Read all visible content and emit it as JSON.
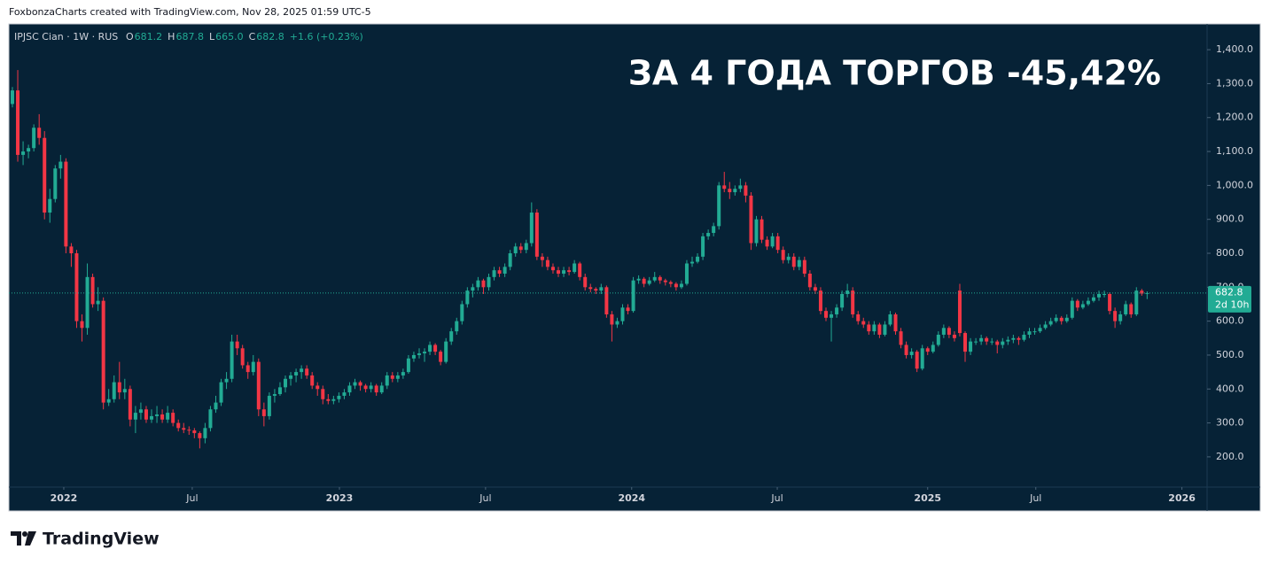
{
  "header": "FoxbonzaCharts created with TradingView.com, Nov 28, 2025 01:59 UTC-5",
  "footer": "TradingView",
  "chart_data": {
    "type": "candlestick",
    "title": "ЗА 4 ГОДА ТОРГОВ -45,42%",
    "symbol": "IPJSC Cian · 1W · RUS",
    "legend": [
      {
        "label": "O",
        "value": "681.2"
      },
      {
        "label": "H",
        "value": "687.8"
      },
      {
        "label": "L",
        "value": "665.0"
      },
      {
        "label": "C",
        "value": "682.8"
      }
    ],
    "change": "+1.6 (+0.23%)",
    "up_color": "#22ab94",
    "down_color": "#f23645",
    "grid": false,
    "last_price": {
      "value": 682.8,
      "label": "682.8"
    },
    "countdown": "2d 10h",
    "ylim": [
      111,
      1476
    ],
    "yticks": [
      {
        "value": 200,
        "label": "200.0"
      },
      {
        "value": 300,
        "label": "300.0"
      },
      {
        "value": 400,
        "label": "400.0"
      },
      {
        "value": 500,
        "label": "500.0"
      },
      {
        "value": 600,
        "label": "600.0"
      },
      {
        "value": 700,
        "label": "700.0"
      },
      {
        "value": 800,
        "label": "800.0"
      },
      {
        "value": 900,
        "label": "900.0"
      },
      {
        "value": 1000,
        "label": "1,000.0"
      },
      {
        "value": 1100,
        "label": "1,100.0"
      },
      {
        "value": 1200,
        "label": "1,200.0"
      },
      {
        "value": 1300,
        "label": "1,300.0"
      },
      {
        "value": 1400,
        "label": "1,400.0"
      }
    ],
    "xlim": [
      -0.66,
      223.2
    ],
    "xticks": [
      {
        "value": 9.6,
        "label": "2022"
      },
      {
        "value": 33.6,
        "label": "Jul"
      },
      {
        "value": 61.1,
        "label": "2023"
      },
      {
        "value": 88.4,
        "label": "Jul"
      },
      {
        "value": 115.7,
        "label": "2024"
      },
      {
        "value": 142.9,
        "label": "Jul"
      },
      {
        "value": 171,
        "label": "2025"
      },
      {
        "value": 191.2,
        "label": "Jul"
      },
      {
        "value": 218.5,
        "label": "2026"
      }
    ],
    "ohlc": [
      [
        1240,
        1290,
        1230,
        1280
      ],
      [
        1280,
        1340,
        1070,
        1090
      ],
      [
        1090,
        1130,
        1060,
        1100
      ],
      [
        1100,
        1120,
        1080,
        1110
      ],
      [
        1110,
        1180,
        1100,
        1170
      ],
      [
        1170,
        1210,
        1120,
        1140
      ],
      [
        1140,
        1160,
        900,
        920
      ],
      [
        920,
        990,
        890,
        960
      ],
      [
        960,
        1060,
        950,
        1050
      ],
      [
        1050,
        1090,
        1020,
        1070
      ],
      [
        1070,
        1080,
        800,
        820
      ],
      [
        820,
        830,
        760,
        800
      ],
      [
        800,
        810,
        580,
        600
      ],
      [
        600,
        620,
        540,
        580
      ],
      [
        580,
        770,
        560,
        730
      ],
      [
        730,
        740,
        640,
        650
      ],
      [
        650,
        700,
        630,
        660
      ],
      [
        660,
        670,
        340,
        360
      ],
      [
        360,
        400,
        350,
        370
      ],
      [
        370,
        440,
        360,
        420
      ],
      [
        420,
        480,
        370,
        390
      ],
      [
        390,
        430,
        370,
        400
      ],
      [
        400,
        410,
        290,
        310
      ],
      [
        310,
        350,
        270,
        330
      ],
      [
        330,
        360,
        310,
        340
      ],
      [
        340,
        350,
        300,
        310
      ],
      [
        310,
        340,
        300,
        320
      ],
      [
        320,
        350,
        300,
        325
      ],
      [
        325,
        340,
        300,
        310
      ],
      [
        310,
        350,
        300,
        330
      ],
      [
        330,
        340,
        290,
        300
      ],
      [
        300,
        310,
        275,
        285
      ],
      [
        285,
        300,
        270,
        280
      ],
      [
        280,
        290,
        265,
        278
      ],
      [
        278,
        285,
        255,
        270
      ],
      [
        270,
        275,
        225,
        255
      ],
      [
        255,
        300,
        240,
        285
      ],
      [
        285,
        350,
        275,
        340
      ],
      [
        340,
        380,
        330,
        360
      ],
      [
        360,
        430,
        350,
        420
      ],
      [
        420,
        450,
        400,
        430
      ],
      [
        430,
        560,
        420,
        540
      ],
      [
        540,
        560,
        500,
        520
      ],
      [
        520,
        530,
        460,
        470
      ],
      [
        470,
        480,
        430,
        450
      ],
      [
        450,
        500,
        440,
        480
      ],
      [
        480,
        490,
        320,
        340
      ],
      [
        340,
        360,
        290,
        320
      ],
      [
        320,
        390,
        310,
        380
      ],
      [
        380,
        400,
        360,
        385
      ],
      [
        385,
        420,
        380,
        405
      ],
      [
        405,
        440,
        390,
        430
      ],
      [
        430,
        450,
        410,
        440
      ],
      [
        440,
        460,
        420,
        450
      ],
      [
        450,
        470,
        430,
        460
      ],
      [
        460,
        470,
        430,
        440
      ],
      [
        440,
        450,
        400,
        410
      ],
      [
        410,
        420,
        380,
        400
      ],
      [
        400,
        410,
        355,
        370
      ],
      [
        370,
        385,
        355,
        365
      ],
      [
        365,
        380,
        355,
        370
      ],
      [
        370,
        390,
        360,
        380
      ],
      [
        380,
        400,
        370,
        390
      ],
      [
        390,
        420,
        380,
        410
      ],
      [
        410,
        430,
        400,
        420
      ],
      [
        420,
        425,
        395,
        410
      ],
      [
        410,
        415,
        390,
        400
      ],
      [
        400,
        420,
        390,
        410
      ],
      [
        410,
        415,
        380,
        390
      ],
      [
        390,
        420,
        385,
        410
      ],
      [
        410,
        450,
        400,
        440
      ],
      [
        440,
        450,
        420,
        430
      ],
      [
        430,
        450,
        420,
        440
      ],
      [
        440,
        460,
        430,
        450
      ],
      [
        450,
        500,
        445,
        490
      ],
      [
        490,
        510,
        480,
        500
      ],
      [
        500,
        520,
        490,
        505
      ],
      [
        505,
        520,
        480,
        510
      ],
      [
        510,
        540,
        500,
        530
      ],
      [
        530,
        535,
        500,
        510
      ],
      [
        510,
        515,
        470,
        480
      ],
      [
        480,
        550,
        475,
        540
      ],
      [
        540,
        580,
        530,
        570
      ],
      [
        570,
        610,
        560,
        600
      ],
      [
        600,
        660,
        590,
        650
      ],
      [
        650,
        700,
        640,
        690
      ],
      [
        690,
        710,
        670,
        700
      ],
      [
        700,
        730,
        690,
        720
      ],
      [
        720,
        725,
        680,
        700
      ],
      [
        700,
        740,
        690,
        730
      ],
      [
        730,
        760,
        720,
        750
      ],
      [
        750,
        760,
        730,
        740
      ],
      [
        740,
        770,
        730,
        760
      ],
      [
        760,
        810,
        750,
        800
      ],
      [
        800,
        830,
        790,
        820
      ],
      [
        820,
        830,
        800,
        810
      ],
      [
        810,
        840,
        800,
        830
      ],
      [
        830,
        950,
        820,
        920
      ],
      [
        920,
        930,
        780,
        790
      ],
      [
        790,
        800,
        760,
        780
      ],
      [
        780,
        790,
        750,
        760
      ],
      [
        760,
        770,
        740,
        750
      ],
      [
        750,
        760,
        730,
        740
      ],
      [
        740,
        760,
        730,
        750
      ],
      [
        750,
        760,
        735,
        745
      ],
      [
        745,
        780,
        740,
        770
      ],
      [
        770,
        775,
        720,
        730
      ],
      [
        730,
        740,
        690,
        700
      ],
      [
        700,
        710,
        685,
        695
      ],
      [
        695,
        700,
        680,
        690
      ],
      [
        690,
        710,
        680,
        700
      ],
      [
        700,
        705,
        610,
        620
      ],
      [
        620,
        630,
        540,
        590
      ],
      [
        590,
        610,
        580,
        600
      ],
      [
        600,
        650,
        590,
        640
      ],
      [
        640,
        650,
        620,
        630
      ],
      [
        630,
        730,
        625,
        720
      ],
      [
        720,
        735,
        710,
        725
      ],
      [
        725,
        730,
        700,
        710
      ],
      [
        710,
        730,
        705,
        720
      ],
      [
        720,
        745,
        715,
        730
      ],
      [
        730,
        735,
        710,
        720
      ],
      [
        720,
        725,
        705,
        715
      ],
      [
        715,
        720,
        700,
        710
      ],
      [
        710,
        715,
        690,
        700
      ],
      [
        700,
        720,
        695,
        710
      ],
      [
        710,
        780,
        705,
        770
      ],
      [
        770,
        790,
        760,
        775
      ],
      [
        775,
        800,
        770,
        790
      ],
      [
        790,
        860,
        780,
        850
      ],
      [
        850,
        870,
        840,
        860
      ],
      [
        860,
        890,
        850,
        880
      ],
      [
        880,
        1010,
        870,
        1000
      ],
      [
        1000,
        1040,
        980,
        990
      ],
      [
        990,
        1010,
        960,
        980
      ],
      [
        980,
        1000,
        970,
        990
      ],
      [
        990,
        1020,
        980,
        1000
      ],
      [
        1000,
        1010,
        950,
        970
      ],
      [
        970,
        980,
        810,
        830
      ],
      [
        830,
        910,
        820,
        900
      ],
      [
        900,
        910,
        830,
        840
      ],
      [
        840,
        850,
        810,
        820
      ],
      [
        820,
        860,
        815,
        850
      ],
      [
        850,
        860,
        800,
        810
      ],
      [
        810,
        820,
        770,
        780
      ],
      [
        780,
        800,
        770,
        790
      ],
      [
        790,
        800,
        750,
        760
      ],
      [
        760,
        790,
        750,
        780
      ],
      [
        780,
        790,
        730,
        740
      ],
      [
        740,
        750,
        690,
        700
      ],
      [
        700,
        710,
        680,
        690
      ],
      [
        690,
        700,
        620,
        630
      ],
      [
        630,
        640,
        600,
        610
      ],
      [
        610,
        630,
        540,
        620
      ],
      [
        620,
        650,
        610,
        640
      ],
      [
        640,
        690,
        630,
        680
      ],
      [
        680,
        710,
        670,
        690
      ],
      [
        690,
        700,
        610,
        620
      ],
      [
        620,
        630,
        590,
        600
      ],
      [
        600,
        610,
        580,
        590
      ],
      [
        590,
        600,
        560,
        570
      ],
      [
        570,
        600,
        560,
        590
      ],
      [
        590,
        595,
        550,
        560
      ],
      [
        560,
        600,
        555,
        590
      ],
      [
        590,
        630,
        585,
        620
      ],
      [
        620,
        625,
        560,
        570
      ],
      [
        570,
        580,
        520,
        530
      ],
      [
        530,
        540,
        490,
        500
      ],
      [
        500,
        520,
        490,
        510
      ],
      [
        510,
        515,
        450,
        460
      ],
      [
        460,
        530,
        455,
        520
      ],
      [
        520,
        525,
        500,
        510
      ],
      [
        510,
        540,
        505,
        530
      ],
      [
        530,
        570,
        525,
        560
      ],
      [
        560,
        590,
        550,
        580
      ],
      [
        580,
        585,
        550,
        560
      ],
      [
        560,
        570,
        540,
        550
      ],
      [
        690,
        710,
        555,
        565
      ],
      [
        565,
        570,
        480,
        510
      ],
      [
        510,
        550,
        500,
        540
      ],
      [
        540,
        550,
        530,
        540
      ],
      [
        540,
        560,
        530,
        550
      ],
      [
        550,
        555,
        530,
        540
      ],
      [
        540,
        550,
        530,
        540
      ],
      [
        540,
        545,
        505,
        530
      ],
      [
        530,
        550,
        520,
        540
      ],
      [
        540,
        555,
        530,
        545
      ],
      [
        545,
        560,
        535,
        550
      ],
      [
        550,
        555,
        530,
        545
      ],
      [
        545,
        570,
        540,
        560
      ],
      [
        560,
        580,
        550,
        570
      ],
      [
        570,
        580,
        560,
        570
      ],
      [
        570,
        590,
        565,
        580
      ],
      [
        580,
        600,
        575,
        590
      ],
      [
        590,
        610,
        585,
        600
      ],
      [
        600,
        620,
        595,
        610
      ],
      [
        610,
        615,
        590,
        600
      ],
      [
        600,
        620,
        595,
        610
      ],
      [
        610,
        670,
        605,
        660
      ],
      [
        660,
        665,
        630,
        640
      ],
      [
        640,
        660,
        635,
        650
      ],
      [
        650,
        670,
        645,
        660
      ],
      [
        660,
        680,
        655,
        670
      ],
      [
        670,
        690,
        660,
        680
      ],
      [
        680,
        690,
        670,
        680
      ],
      [
        680,
        685,
        620,
        630
      ],
      [
        630,
        640,
        580,
        600
      ],
      [
        600,
        630,
        590,
        620
      ],
      [
        620,
        660,
        615,
        650
      ],
      [
        650,
        655,
        610,
        620
      ],
      [
        620,
        700,
        615,
        690
      ],
      [
        690,
        695,
        675,
        681.2
      ],
      [
        681.2,
        687.8,
        665,
        682.8
      ]
    ]
  }
}
